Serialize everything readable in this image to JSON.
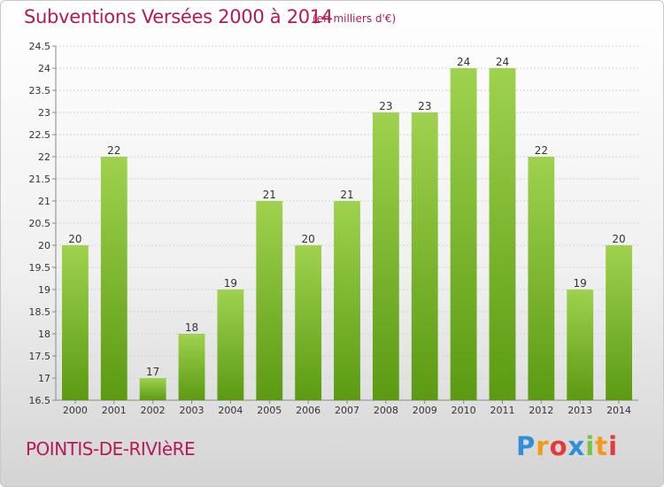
{
  "header": {
    "title": "Subventions Versées 2000 à 2014",
    "unit": "(en milliers d'€)"
  },
  "footer": {
    "commune": "POINTIS-DE-RIVIèRE",
    "logo_letters": [
      "P",
      "r",
      "o",
      "x",
      "i",
      "t",
      "i"
    ],
    "logo_colors": [
      "#2f8fd8",
      "#f39a1b",
      "#e43a3a",
      "#2f8fd8",
      "#7cc242",
      "#f39a1b",
      "#e43a3a"
    ]
  },
  "chart_data": {
    "type": "bar",
    "categories": [
      "2000",
      "2001",
      "2002",
      "2003",
      "2004",
      "2005",
      "2006",
      "2007",
      "2008",
      "2009",
      "2010",
      "2011",
      "2012",
      "2013",
      "2014"
    ],
    "values": [
      20,
      22,
      17,
      18,
      19,
      21,
      20,
      21,
      23,
      23,
      24,
      24,
      22,
      19,
      20
    ],
    "data_labels": [
      "20",
      "22",
      "17",
      "18",
      "19",
      "21",
      "20",
      "21",
      "23",
      "23",
      "24",
      "24",
      "22",
      "19",
      "20"
    ],
    "ylim": [
      16.5,
      24.5
    ],
    "yticks": [
      16.5,
      17,
      17.5,
      18,
      18.5,
      19,
      19.5,
      20,
      20.5,
      21,
      21.5,
      22,
      22.5,
      23,
      23.5,
      24,
      24.5
    ],
    "ytick_labels": [
      "16.5",
      "17",
      "17.5",
      "18",
      "18.5",
      "19",
      "19.5",
      "20",
      "20.5",
      "21",
      "21.5",
      "22",
      "22.5",
      "23",
      "23.5",
      "24",
      "24.5"
    ],
    "grid": true,
    "bar_color_top": "#9fd24e",
    "bar_color_bottom": "#5b9a12",
    "label_color": "#333333"
  }
}
